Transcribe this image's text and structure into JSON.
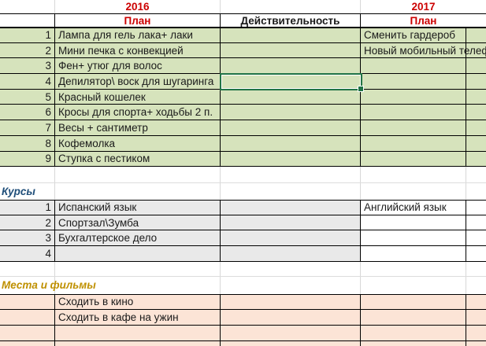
{
  "header": {
    "year_left": "2016",
    "year_right": "2017",
    "col_plan_left": "План",
    "col_actual": "Действительность",
    "col_plan_right": "План"
  },
  "colors": {
    "green_fill": "#d6e3bc",
    "gray_fill": "#e9e9e9",
    "peach_fill": "#fce4d6",
    "header_red": "#cc0000",
    "courses_blue": "#1f4e79",
    "places_gold": "#bf9000",
    "selection_green": "#217346"
  },
  "sections": {
    "purchases": {
      "rows": [
        {
          "num": "1",
          "plan2016": "Лампа для гель лака+ лаки",
          "actual": "",
          "plan2017": "Сменить гардероб"
        },
        {
          "num": "2",
          "plan2016": "Мини печка с конвекцией",
          "actual": "",
          "plan2017": "Новый мобильный телеф"
        },
        {
          "num": "3",
          "plan2016": "Фен+ утюг для волос",
          "actual": "",
          "plan2017": ""
        },
        {
          "num": "4",
          "plan2016": "Депилятор\\ воск для шугаринга",
          "actual": "",
          "plan2017": ""
        },
        {
          "num": "5",
          "plan2016": "Красный кошелек",
          "actual": "",
          "plan2017": ""
        },
        {
          "num": "6",
          "plan2016": "Кросы для спорта+ ходьбы 2 п.",
          "actual": "",
          "plan2017": ""
        },
        {
          "num": "7",
          "plan2016": "Весы + сантиметр",
          "actual": "",
          "plan2017": ""
        },
        {
          "num": "8",
          "plan2016": "Кофемолка",
          "actual": "",
          "plan2017": ""
        },
        {
          "num": "9",
          "plan2016": "Ступка с пестиком",
          "actual": "",
          "plan2017": ""
        }
      ]
    },
    "courses": {
      "label": "Курсы",
      "rows": [
        {
          "num": "1",
          "plan2016": "Испанский язык",
          "actual": "",
          "plan2017": "Английский язык"
        },
        {
          "num": "2",
          "plan2016": "Спортзал\\Зумба",
          "actual": "",
          "plan2017": ""
        },
        {
          "num": "3",
          "plan2016": "Бухгалтерское дело",
          "actual": "",
          "plan2017": ""
        },
        {
          "num": "4",
          "plan2016": "",
          "actual": "",
          "plan2017": ""
        }
      ]
    },
    "places": {
      "label": "Места и фильмы",
      "rows": [
        {
          "num": "",
          "plan2016": "Сходить в кино",
          "actual": "",
          "plan2017": ""
        },
        {
          "num": "",
          "plan2016": "Сходить в кафе на ужин",
          "actual": "",
          "plan2017": ""
        },
        {
          "num": "",
          "plan2016": "",
          "actual": "",
          "plan2017": ""
        },
        {
          "num": "",
          "plan2016": "",
          "actual": "",
          "plan2017": ""
        }
      ]
    }
  },
  "selection": {
    "section": "purchases",
    "row_index": 3,
    "column": "actual"
  }
}
